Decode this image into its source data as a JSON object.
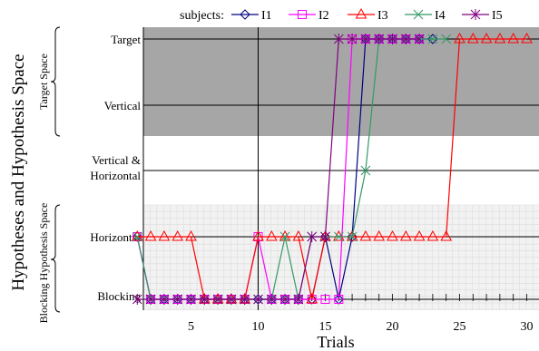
{
  "chart_data": {
    "type": "line",
    "ylabel": "Hypotheses and Hypothesis Space",
    "xlabel": "Trials",
    "xlim": [
      1,
      31
    ],
    "x_ticks": [
      5,
      10,
      15,
      20,
      25,
      30
    ],
    "y_categories": [
      "Blocking",
      "Horizontal",
      "Vertical & Horizontal",
      "Vertical",
      "Target"
    ],
    "y_values": {
      "Blocking": 0,
      "Horizontal": 1,
      "Vertical & Horizontal": 2,
      "Vertical": 3,
      "Target": 4
    },
    "spaces": [
      {
        "name": "Target Space",
        "covers": [
          "Vertical",
          "Target"
        ]
      },
      {
        "name": "Blocking Hypothesis Space",
        "covers": [
          "Blocking",
          "Horizontal"
        ]
      }
    ],
    "legend_title": "subjects:",
    "legend_position": "top",
    "series": [
      {
        "name": "I1",
        "color": "#000080",
        "marker": "diamond",
        "x": [
          1,
          2,
          3,
          4,
          5,
          6,
          7,
          8,
          9,
          10,
          11,
          12,
          13,
          14,
          15,
          16,
          17,
          18,
          19,
          20,
          21,
          22,
          23
        ],
        "y": [
          1,
          0,
          0,
          0,
          0,
          0,
          0,
          0,
          0,
          0,
          0,
          0,
          0,
          0,
          1,
          0,
          1,
          4,
          4,
          4,
          4,
          4,
          4
        ]
      },
      {
        "name": "I2",
        "color": "#ff00ff",
        "marker": "square",
        "x": [
          1,
          2,
          3,
          4,
          5,
          6,
          7,
          8,
          9,
          10,
          11,
          12,
          13,
          14,
          15,
          16,
          17,
          18,
          19,
          20,
          21,
          22
        ],
        "y": [
          1,
          0,
          0,
          0,
          0,
          0,
          0,
          0,
          0,
          1,
          0,
          0,
          0,
          0,
          0,
          0,
          4,
          4,
          4,
          4,
          4,
          4
        ]
      },
      {
        "name": "I3",
        "color": "#ff0000",
        "marker": "triangle",
        "x": [
          1,
          2,
          3,
          4,
          5,
          6,
          7,
          8,
          9,
          10,
          11,
          12,
          13,
          14,
          15,
          16,
          17,
          18,
          19,
          20,
          21,
          22,
          23,
          24,
          25,
          26,
          27,
          28,
          29,
          30
        ],
        "y": [
          1,
          1,
          1,
          1,
          1,
          0,
          0,
          0,
          0,
          1,
          1,
          1,
          1,
          0,
          1,
          1,
          1,
          1,
          1,
          1,
          1,
          1,
          1,
          1,
          4,
          4,
          4,
          4,
          4,
          4
        ]
      },
      {
        "name": "I4",
        "color": "#339966",
        "marker": "x",
        "x": [
          1,
          2,
          3,
          4,
          5,
          6,
          7,
          8,
          9,
          10,
          11,
          12,
          13,
          14,
          15,
          16,
          17,
          18,
          19,
          20,
          21,
          22,
          23,
          24
        ],
        "y": [
          1,
          0,
          0,
          0,
          0,
          0,
          0,
          0,
          0,
          0,
          0,
          1,
          0,
          1,
          1,
          1,
          1,
          2,
          4,
          4,
          4,
          4,
          4,
          4
        ]
      },
      {
        "name": "I5",
        "color": "#800080",
        "marker": "star",
        "x": [
          1,
          2,
          3,
          4,
          5,
          6,
          7,
          8,
          9,
          10,
          11,
          12,
          13,
          14,
          15,
          16,
          17,
          18,
          19,
          20,
          21,
          22
        ],
        "y": [
          0,
          0,
          0,
          0,
          0,
          0,
          0,
          0,
          0,
          0,
          0,
          0,
          0,
          1,
          1,
          4,
          4,
          4,
          4,
          4,
          4,
          4
        ]
      }
    ]
  }
}
